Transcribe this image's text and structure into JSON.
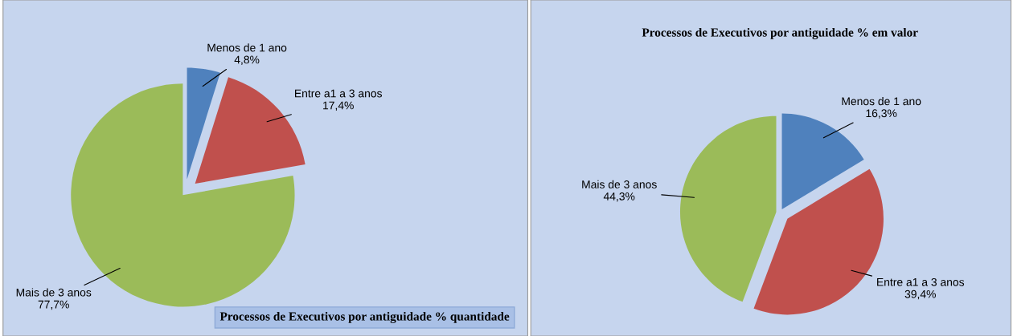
{
  "chart_data": [
    {
      "type": "pie",
      "title": "Processos de Executivos por antiguidade % quantidade",
      "categories": [
        "Menos de 1 ano",
        "Entre a1 a 3 anos",
        "Mais de 3 anos"
      ],
      "values": [
        4.8,
        17.4,
        77.7
      ],
      "value_labels": [
        "4,8%",
        "17,4%",
        "77,7%"
      ],
      "colors": [
        "#4f81bd",
        "#c0504d",
        "#9bbb59"
      ]
    },
    {
      "type": "pie",
      "title": "Processos de Executivos por antiguidade % em valor",
      "categories": [
        "Menos de 1 ano",
        "Entre a1 a 3 anos",
        "Mais de 3 anos"
      ],
      "values": [
        16.3,
        39.4,
        44.3
      ],
      "value_labels": [
        "16,3%",
        "39,4%",
        "44,3%"
      ],
      "colors": [
        "#4f81bd",
        "#c0504d",
        "#9bbb59"
      ]
    }
  ]
}
